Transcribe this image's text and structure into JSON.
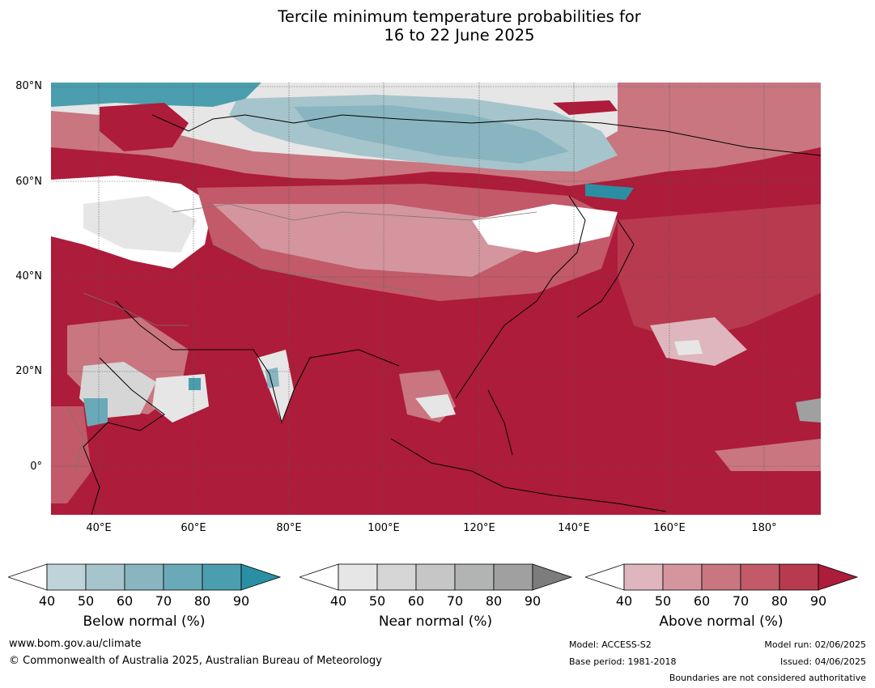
{
  "title_line1": "Tercile minimum temperature probabilities for",
  "title_line2": "16 to 22 June 2025",
  "map": {
    "lat_labels": [
      "80°N",
      "60°N",
      "40°N",
      "20°N",
      "0°"
    ],
    "lon_labels": [
      "40°E",
      "60°E",
      "80°E",
      "100°E",
      "120°E",
      "140°E",
      "160°E",
      "180°"
    ],
    "colors": {
      "below": [
        "#bfd3da",
        "#a6c4cb",
        "#88b5c0",
        "#6aa9b7",
        "#4b9eae",
        "#2b8fa3"
      ],
      "near": [
        "#e6e6e6",
        "#d6d6d6",
        "#c6c6c6",
        "#b2b4b4",
        "#a0a0a0",
        "#7c7c7c"
      ],
      "above": [
        "#dfb6bd",
        "#d4959e",
        "#c97680",
        "#c25a69",
        "#b83a4f",
        "#ad1c3a"
      ]
    }
  },
  "legends": [
    {
      "title": "Below normal (%)",
      "ticks": [
        "40",
        "50",
        "60",
        "70",
        "80",
        "90"
      ]
    },
    {
      "title": "Near normal (%)",
      "ticks": [
        "40",
        "50",
        "60",
        "70",
        "80",
        "90"
      ]
    },
    {
      "title": "Above normal (%)",
      "ticks": [
        "40",
        "50",
        "60",
        "70",
        "80",
        "90"
      ]
    }
  ],
  "footer": {
    "website": "www.bom.gov.au/climate",
    "copyright": "© Commonwealth of Australia 2025, Australian Bureau of Meteorology",
    "model": "Model: ACCESS-S2",
    "base_period": "Base period: 1981-2018",
    "model_run": "Model run: 02/06/2025",
    "issued": "Issued: 04/06/2025",
    "boundaries": "Boundaries are not considered authoritative"
  }
}
